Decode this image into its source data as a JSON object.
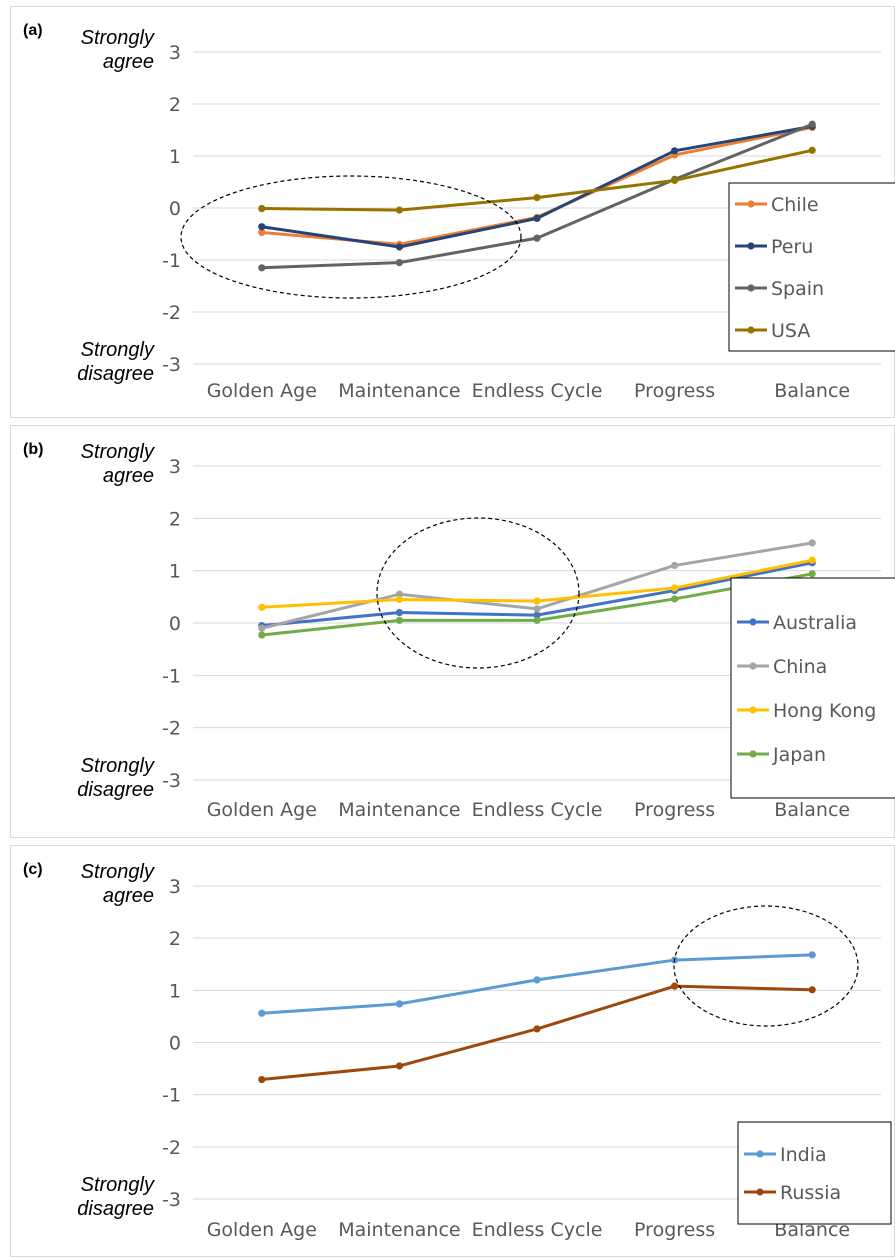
{
  "chart_data": [
    {
      "type": "line",
      "panel_label": "(a)",
      "y_top_label": [
        "Strongly",
        "agree"
      ],
      "y_bottom_label": [
        "Strongly",
        "disagree"
      ],
      "categories": [
        "Golden Age",
        "Maintenance",
        "Endless Cycle",
        "Progress",
        "Balance"
      ],
      "ylim": [
        -3,
        3
      ],
      "yticks": [
        3,
        2,
        1,
        0,
        -1,
        -2,
        -3
      ],
      "grid": true,
      "legend_position": "right",
      "highlight": {
        "shape": "dashed-ellipse",
        "around": [
          "Golden Age",
          "Maintenance"
        ]
      },
      "series": [
        {
          "name": "Chile",
          "color": "#ED7D31",
          "values": [
            -0.47,
            -0.7,
            -0.18,
            1.02,
            1.55
          ]
        },
        {
          "name": "Peru",
          "color": "#264478",
          "values": [
            -0.36,
            -0.75,
            -0.2,
            1.1,
            1.57
          ]
        },
        {
          "name": "Spain",
          "color": "#636363",
          "values": [
            -1.15,
            -1.05,
            -0.58,
            0.55,
            1.61
          ]
        },
        {
          "name": "USA",
          "color": "#997300",
          "values": [
            -0.01,
            -0.04,
            0.2,
            0.53,
            1.11
          ]
        }
      ]
    },
    {
      "type": "line",
      "panel_label": "(b)",
      "y_top_label": [
        "Strongly",
        "agree"
      ],
      "y_bottom_label": [
        "Strongly",
        "disagree"
      ],
      "categories": [
        "Golden Age",
        "Maintenance",
        "Endless Cycle",
        "Progress",
        "Balance"
      ],
      "ylim": [
        -3,
        3
      ],
      "yticks": [
        3,
        2,
        1,
        0,
        -1,
        -2,
        -3
      ],
      "grid": true,
      "legend_position": "right",
      "highlight": {
        "shape": "dashed-ellipse",
        "around": [
          "Maintenance",
          "Endless Cycle"
        ]
      },
      "series": [
        {
          "name": "Australia",
          "color": "#4472C4",
          "values": [
            -0.05,
            0.2,
            0.15,
            0.62,
            1.15
          ]
        },
        {
          "name": "China",
          "color": "#A5A5A5",
          "values": [
            -0.1,
            0.55,
            0.27,
            1.1,
            1.53
          ]
        },
        {
          "name": "Hong Kong",
          "color": "#FFC000",
          "values": [
            0.3,
            0.45,
            0.42,
            0.67,
            1.2
          ]
        },
        {
          "name": "Japan",
          "color": "#70AD47",
          "values": [
            -0.23,
            0.05,
            0.05,
            0.46,
            0.94
          ]
        }
      ]
    },
    {
      "type": "line",
      "panel_label": "(c)",
      "y_top_label": [
        "Strongly",
        "agree"
      ],
      "y_bottom_label": [
        "Strongly",
        "disagree"
      ],
      "categories": [
        "Golden Age",
        "Maintenance",
        "Endless Cycle",
        "Progress",
        "Balance"
      ],
      "ylim": [
        -3,
        3
      ],
      "yticks": [
        3,
        2,
        1,
        0,
        -1,
        -2,
        -3
      ],
      "grid": true,
      "legend_position": "bottom-right",
      "highlight": {
        "shape": "dashed-ellipse",
        "around": [
          "Progress",
          "Balance"
        ]
      },
      "series": [
        {
          "name": "India",
          "color": "#5B9BD5",
          "values": [
            0.56,
            0.74,
            1.2,
            1.58,
            1.68
          ]
        },
        {
          "name": "Russia",
          "color": "#9E480E",
          "values": [
            -0.71,
            -0.45,
            0.26,
            1.08,
            1.01
          ]
        }
      ]
    }
  ]
}
